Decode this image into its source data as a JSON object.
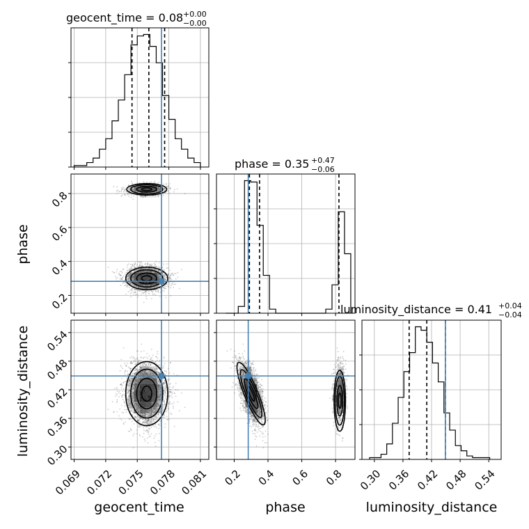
{
  "chart_data": {
    "type": "corner",
    "parameters": [
      "geocent_time",
      "phase",
      "luminosity_distance"
    ],
    "axis_labels": [
      "geocent_time",
      "phase",
      "luminosity_distance"
    ],
    "grid": true,
    "truth_color": "#4682b4",
    "truths": {
      "geocent_time": 0.0773,
      "phase": 0.283,
      "luminosity_distance": 0.449
    },
    "titles": [
      {
        "param": "geocent_time",
        "prefix": "geocent_time = ",
        "value": "0.08",
        "upper": "+0.00",
        "lower": "−0.00"
      },
      {
        "param": "phase",
        "prefix": "phase = ",
        "value": "0.35",
        "upper": "+0.47",
        "lower": "−0.06"
      },
      {
        "param": "luminosity_distance",
        "prefix": "luminosity_distance = ",
        "value": "0.41",
        "upper": "+0.04",
        "lower": "−0.04"
      }
    ],
    "ranges": {
      "geocent_time": [
        0.0687,
        0.0818
      ],
      "phase": [
        0.095,
        0.915
      ],
      "luminosity_distance": [
        0.274,
        0.566
      ]
    },
    "ticks": {
      "geocent_time": [
        "0.069",
        "0.072",
        "0.075",
        "0.078",
        "0.081"
      ],
      "phase_y": [
        "0.2",
        "0.4",
        "0.6",
        "0.8"
      ],
      "phase_x": [
        "0.2",
        "0.4",
        "0.6",
        "0.8"
      ],
      "luminosity_distance_y": [
        "0.30",
        "0.36",
        "0.42",
        "0.48",
        "0.54"
      ],
      "luminosity_distance_x": [
        "0.30",
        "0.36",
        "0.42",
        "0.48",
        "0.54"
      ]
    },
    "quantiles": {
      "geocent_time": [
        0.0745,
        0.0761,
        0.0776
      ],
      "phase": [
        0.29,
        0.35,
        0.82
      ],
      "luminosity_distance": [
        0.373,
        0.41,
        0.449
      ]
    },
    "hist_geocent_time": {
      "edges": [
        0.069,
        0.0696,
        0.0702,
        0.0708,
        0.0714,
        0.072,
        0.0726,
        0.0732,
        0.0738,
        0.0744,
        0.075,
        0.0756,
        0.0762,
        0.0768,
        0.0774,
        0.078,
        0.0786,
        0.0792,
        0.0798,
        0.0804,
        0.081
      ],
      "counts": [
        1,
        1,
        3,
        6,
        12,
        19,
        31,
        45,
        62,
        82,
        88,
        89,
        81,
        70,
        48,
        32,
        19,
        12,
        6,
        3
      ]
    },
    "hist_phase": {
      "edges": [
        0.15,
        0.187,
        0.224,
        0.261,
        0.298,
        0.335,
        0.372,
        0.409,
        0.446,
        0.483,
        0.52,
        0.557,
        0.594,
        0.631,
        0.668,
        0.705,
        0.742,
        0.779,
        0.816,
        0.853,
        0.89
      ],
      "counts": [
        0,
        0,
        5,
        98,
        97,
        65,
        28,
        3,
        0,
        0,
        0,
        0,
        0,
        0,
        0,
        0,
        3,
        21,
        75,
        44
      ]
    },
    "hist_luminosity_distance": {
      "edges": [
        0.29,
        0.302,
        0.314,
        0.326,
        0.338,
        0.35,
        0.362,
        0.374,
        0.386,
        0.398,
        0.41,
        0.422,
        0.434,
        0.446,
        0.458,
        0.47,
        0.482,
        0.494,
        0.506,
        0.518,
        0.53,
        0.542
      ],
      "counts": [
        1,
        1,
        3,
        9,
        21,
        36,
        51,
        62,
        77,
        75,
        68,
        56,
        45,
        27,
        17,
        8,
        5,
        2,
        1,
        1,
        1
      ]
    },
    "modes": {
      "geocent_time": {
        "mean": 0.0759,
        "sd": 0.00095
      },
      "phase": [
        {
          "mean": 0.3,
          "sd": 0.035,
          "weight": 0.72,
          "rho_ld": -0.6
        },
        {
          "mean": 0.825,
          "sd": 0.017,
          "weight": 0.28,
          "rho_ld": 0.0
        }
      ],
      "luminosity_distance": {
        "mean": 0.412,
        "sd": 0.032
      }
    }
  }
}
